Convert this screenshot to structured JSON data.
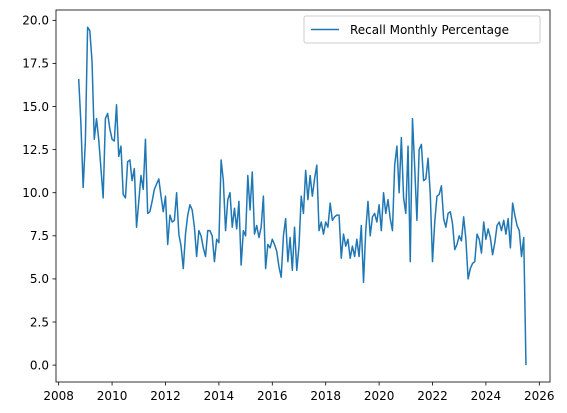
{
  "chart_data": {
    "type": "line",
    "title": "",
    "xlabel": "",
    "ylabel": "",
    "xlim": [
      2007.9,
      2026.4
    ],
    "ylim": [
      -0.98,
      20.6
    ],
    "x_ticks": [
      2008,
      2010,
      2012,
      2014,
      2016,
      2018,
      2020,
      2022,
      2024,
      2026
    ],
    "x_tick_labels": [
      "2008",
      "2010",
      "2012",
      "2014",
      "2016",
      "2018",
      "2020",
      "2022",
      "2024",
      "2026"
    ],
    "y_ticks": [
      0.0,
      2.5,
      5.0,
      7.5,
      10.0,
      12.5,
      15.0,
      17.5,
      20.0
    ],
    "y_tick_labels": [
      "0.0",
      "2.5",
      "5.0",
      "7.5",
      "10.0",
      "12.5",
      "15.0",
      "17.5",
      "20.0"
    ],
    "grid": false,
    "legend": {
      "position": "top-right",
      "entries": [
        "Recall Monthly Percentage"
      ]
    },
    "series": [
      {
        "name": "Recall Monthly Percentage",
        "color": "#1f77b4",
        "x_start": 2008.75,
        "x_step": 0.083333,
        "values": [
          16.6,
          14.0,
          10.3,
          13.0,
          19.6,
          19.4,
          17.6,
          13.1,
          14.3,
          13.1,
          11.4,
          9.7,
          14.3,
          14.6,
          13.7,
          13.1,
          13.0,
          15.1,
          12.1,
          12.7,
          9.9,
          9.7,
          11.8,
          11.9,
          10.7,
          11.4,
          8.0,
          9.5,
          11.0,
          10.2,
          13.1,
          8.8,
          8.9,
          9.5,
          10.2,
          10.5,
          10.8,
          9.8,
          8.9,
          9.8,
          7.0,
          8.7,
          8.3,
          8.4,
          10.0,
          7.6,
          6.9,
          5.6,
          7.6,
          8.7,
          9.3,
          9.0,
          8.0,
          6.3,
          7.8,
          7.5,
          6.8,
          6.3,
          7.8,
          7.8,
          7.5,
          6.0,
          7.3,
          7.1,
          11.9,
          10.7,
          7.8,
          9.6,
          10.0,
          8.0,
          9.1,
          7.9,
          9.5,
          5.8,
          7.8,
          7.5,
          11.0,
          9.0,
          11.2,
          7.6,
          8.1,
          7.4,
          8.0,
          9.8,
          5.6,
          7.0,
          6.8,
          7.3,
          7.0,
          6.6,
          5.7,
          5.1,
          7.5,
          8.5,
          6.0,
          7.4,
          5.5,
          8.0,
          5.5,
          6.9,
          9.8,
          8.8,
          11.3,
          9.6,
          11.0,
          9.8,
          10.8,
          11.6,
          7.8,
          8.3,
          7.6,
          8.3,
          8.0,
          9.4,
          8.4,
          8.6,
          8.7,
          8.7,
          6.2,
          7.6,
          6.9,
          7.3,
          6.2,
          6.9,
          6.3,
          7.3,
          6.3,
          8.1,
          4.8,
          7.8,
          9.5,
          7.5,
          8.6,
          8.8,
          8.3,
          9.3,
          7.8,
          10.0,
          8.8,
          9.6,
          8.5,
          7.8,
          11.6,
          12.7,
          10.0,
          13.2,
          9.7,
          8.8,
          12.7,
          6.0,
          14.3,
          11.5,
          8.4,
          12.5,
          12.8,
          10.7,
          10.8,
          12.0,
          9.9,
          6.0,
          8.3,
          9.8,
          9.9,
          10.4,
          8.5,
          8.0,
          8.8,
          8.9,
          8.2,
          6.7,
          7.0,
          7.5,
          7.2,
          8.6,
          7.3,
          5.0,
          5.6,
          5.9,
          6.0,
          7.6,
          7.3,
          6.5,
          8.3,
          7.3,
          7.9,
          7.4,
          6.4,
          7.1,
          8.1,
          8.3,
          7.8,
          8.4,
          7.6,
          8.5,
          6.8,
          9.4,
          8.7,
          8.1,
          7.8,
          6.3,
          7.4,
          0.0
        ]
      }
    ]
  }
}
